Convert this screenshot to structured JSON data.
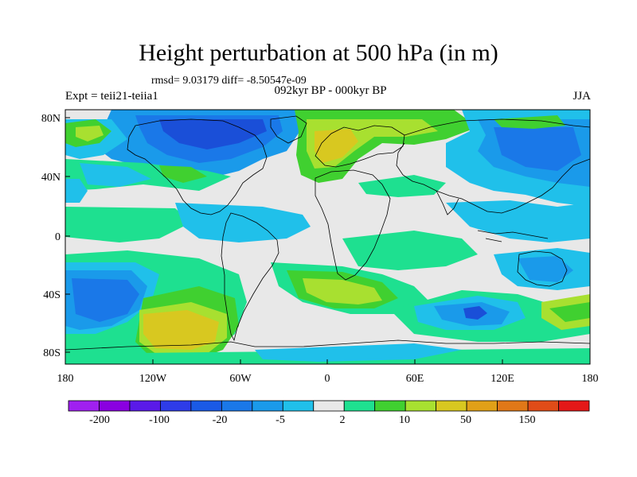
{
  "title": "Height perturbation at 500 hPa (in m)",
  "stats": "rmsd= 9.03179 diff= -8.50547e-09",
  "experiment": "Expt = teii21-teiia1",
  "period": "092kyr BP - 000kyr BP",
  "season": "JJA",
  "lat_ticks": [
    "80N",
    "40N",
    "0",
    "40S",
    "80S"
  ],
  "lon_ticks": [
    "180",
    "120W",
    "60W",
    "0",
    "60E",
    "120E",
    "180"
  ],
  "colorbar": {
    "labels": [
      "-200",
      "-100",
      "-20",
      "-5",
      "2",
      "10",
      "50",
      "150"
    ],
    "colors": [
      "#a020f0",
      "#8a00e0",
      "#5a1ae8",
      "#2e3ce8",
      "#1a5ae6",
      "#1a78e8",
      "#1a9aea",
      "#20c0ea",
      "#e8e8e8",
      "#1ee090",
      "#40d030",
      "#a8e030",
      "#d8c820",
      "#e0a018",
      "#e07818",
      "#e04c18",
      "#e41818"
    ]
  },
  "palette": {
    "background": "#e8e8e8",
    "blue_dark": "#1a4fd8",
    "blue_mid": "#1a78e8",
    "blue_light": "#1a9aea",
    "cyan": "#20c0ea",
    "teal": "#1ee090",
    "green": "#40d030",
    "yellow_green": "#a8e030",
    "yellow": "#d8c820"
  }
}
